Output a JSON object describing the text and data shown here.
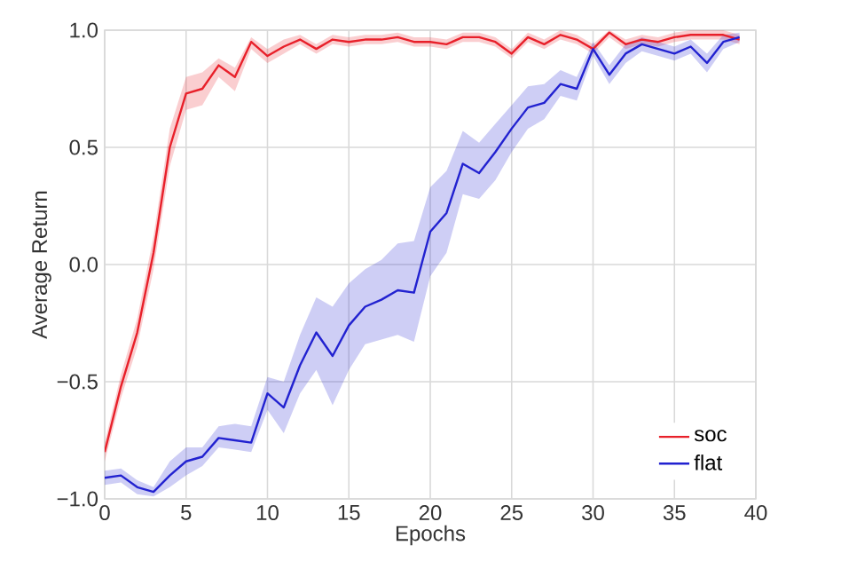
{
  "chart_data": {
    "type": "line",
    "xlabel": "Epochs",
    "ylabel": "Average Return",
    "x": [
      0,
      1,
      2,
      3,
      4,
      5,
      6,
      7,
      8,
      9,
      10,
      11,
      12,
      13,
      14,
      15,
      16,
      17,
      18,
      19,
      20,
      21,
      22,
      23,
      24,
      25,
      26,
      27,
      28,
      29,
      30,
      31,
      32,
      33,
      34,
      35,
      36,
      37,
      38,
      39
    ],
    "series": [
      {
        "name": "soc",
        "color": "#e8202a",
        "values": [
          -0.8,
          -0.52,
          -0.29,
          0.05,
          0.5,
          0.73,
          0.75,
          0.85,
          0.8,
          0.95,
          0.89,
          0.93,
          0.96,
          0.92,
          0.96,
          0.95,
          0.96,
          0.96,
          0.97,
          0.95,
          0.95,
          0.94,
          0.97,
          0.97,
          0.95,
          0.9,
          0.97,
          0.94,
          0.98,
          0.96,
          0.92,
          0.99,
          0.94,
          0.96,
          0.95,
          0.97,
          0.98,
          0.98,
          0.98,
          0.96
        ],
        "lower": [
          -0.84,
          -0.57,
          -0.35,
          -0.02,
          0.42,
          0.66,
          0.68,
          0.8,
          0.74,
          0.92,
          0.86,
          0.9,
          0.94,
          0.9,
          0.94,
          0.93,
          0.94,
          0.94,
          0.95,
          0.93,
          0.93,
          0.92,
          0.95,
          0.95,
          0.93,
          0.88,
          0.95,
          0.92,
          0.96,
          0.94,
          0.9,
          0.97,
          0.92,
          0.94,
          0.93,
          0.95,
          0.96,
          0.96,
          0.96,
          0.94
        ],
        "upper": [
          -0.76,
          -0.47,
          -0.23,
          0.12,
          0.58,
          0.8,
          0.82,
          0.88,
          0.84,
          0.97,
          0.92,
          0.96,
          0.98,
          0.94,
          0.98,
          0.97,
          0.98,
          0.98,
          0.99,
          0.97,
          0.97,
          0.96,
          0.99,
          0.99,
          0.97,
          0.92,
          0.99,
          0.96,
          1.0,
          0.98,
          0.94,
          1.0,
          0.96,
          0.98,
          0.97,
          0.99,
          1.0,
          1.0,
          1.0,
          0.98
        ]
      },
      {
        "name": "flat",
        "color": "#2222d0",
        "values": [
          -0.91,
          -0.9,
          -0.95,
          -0.97,
          -0.9,
          -0.84,
          -0.82,
          -0.74,
          -0.75,
          -0.76,
          -0.55,
          -0.61,
          -0.43,
          -0.29,
          -0.39,
          -0.26,
          -0.18,
          -0.15,
          -0.11,
          -0.12,
          0.14,
          0.22,
          0.43,
          0.39,
          0.48,
          0.58,
          0.67,
          0.69,
          0.77,
          0.75,
          0.92,
          0.81,
          0.9,
          0.94,
          0.92,
          0.9,
          0.93,
          0.86,
          0.95,
          0.97
        ],
        "lower": [
          -0.94,
          -0.93,
          -0.98,
          -0.99,
          -0.95,
          -0.9,
          -0.86,
          -0.78,
          -0.79,
          -0.8,
          -0.62,
          -0.72,
          -0.55,
          -0.45,
          -0.6,
          -0.45,
          -0.34,
          -0.32,
          -0.3,
          -0.33,
          -0.05,
          0.05,
          0.3,
          0.28,
          0.36,
          0.48,
          0.58,
          0.62,
          0.72,
          0.7,
          0.89,
          0.77,
          0.86,
          0.91,
          0.89,
          0.87,
          0.9,
          0.82,
          0.92,
          0.95
        ],
        "upper": [
          -0.88,
          -0.87,
          -0.92,
          -0.95,
          -0.84,
          -0.78,
          -0.78,
          -0.69,
          -0.68,
          -0.69,
          -0.48,
          -0.5,
          -0.3,
          -0.14,
          -0.18,
          -0.08,
          -0.02,
          0.02,
          0.09,
          0.1,
          0.33,
          0.4,
          0.57,
          0.52,
          0.6,
          0.68,
          0.76,
          0.77,
          0.83,
          0.8,
          0.95,
          0.85,
          0.94,
          0.97,
          0.95,
          0.93,
          0.96,
          0.9,
          0.98,
          0.99
        ]
      }
    ],
    "xlim": [
      0,
      40
    ],
    "ylim": [
      -1.0,
      1.0
    ],
    "xticks": [
      0,
      5,
      10,
      15,
      20,
      25,
      30,
      35,
      40
    ],
    "yticks": [
      {
        "value": -1.0,
        "label": "−1.0"
      },
      {
        "value": -0.5,
        "label": "−0.5"
      },
      {
        "value": 0.0,
        "label": "0.0"
      },
      {
        "value": 0.5,
        "label": "0.5"
      },
      {
        "value": 1.0,
        "label": "1.0"
      }
    ],
    "grid": true,
    "legend": "bottom right",
    "marker": "none",
    "line_style": "solid"
  }
}
